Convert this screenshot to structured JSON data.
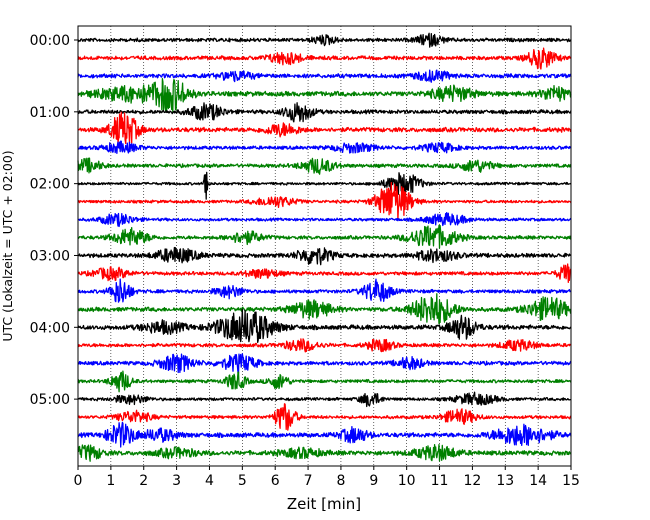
{
  "chart_data": {
    "type": "line",
    "title": "",
    "xlabel": "Zeit  [min]",
    "ylabel": "UTC (Lokalzeit = UTC + 02:00)",
    "xlim": [
      0,
      15
    ],
    "x_ticks": [
      0,
      1,
      2,
      3,
      4,
      5,
      6,
      7,
      8,
      9,
      10,
      11,
      12,
      13,
      14,
      15
    ],
    "x_tick_labels": [
      "0",
      "1",
      "2",
      "3",
      "4",
      "5",
      "6",
      "7",
      "8",
      "9",
      "10",
      "11",
      "12",
      "13",
      "14",
      "15"
    ],
    "y_tick_labels": [
      "00:00",
      "01:00",
      "02:00",
      "03:00",
      "04:00",
      "05:00"
    ],
    "y_tick_trace_index": [
      0,
      4,
      8,
      12,
      16,
      20
    ],
    "trace_minutes": 15,
    "grid": "vertical dotted",
    "color_cycle": [
      "#000000",
      "#ff0000",
      "#0000ff",
      "#008000"
    ],
    "series": [
      {
        "start": "00:00",
        "color": "#000000",
        "amp": 0.22,
        "bursts": [
          [
            7.5,
            0.35,
            0.6
          ],
          [
            10.7,
            0.4,
            0.8
          ]
        ]
      },
      {
        "start": "00:15",
        "color": "#ff0000",
        "amp": 0.24,
        "bursts": [
          [
            6.3,
            0.5,
            0.8
          ],
          [
            14.1,
            0.4,
            1.4
          ]
        ]
      },
      {
        "start": "00:30",
        "color": "#0000ff",
        "amp": 0.26,
        "bursts": [
          [
            4.8,
            0.5,
            0.6
          ],
          [
            10.8,
            0.5,
            0.7
          ]
        ]
      },
      {
        "start": "00:45",
        "color": "#008000",
        "amp": 0.3,
        "bursts": [
          [
            2.8,
            0.5,
            2.2
          ],
          [
            1.6,
            1.0,
            1.0
          ],
          [
            11.4,
            0.6,
            1.0
          ],
          [
            14.5,
            0.4,
            1.0
          ]
        ]
      },
      {
        "start": "01:00",
        "color": "#000000",
        "amp": 0.24,
        "bursts": [
          [
            3.9,
            0.5,
            1.1
          ],
          [
            6.7,
            0.4,
            1.4
          ]
        ]
      },
      {
        "start": "01:15",
        "color": "#ff0000",
        "amp": 0.28,
        "bursts": [
          [
            1.4,
            0.4,
            2.4
          ],
          [
            6.2,
            0.5,
            0.8
          ]
        ]
      },
      {
        "start": "01:30",
        "color": "#0000ff",
        "amp": 0.22,
        "bursts": [
          [
            1.3,
            0.5,
            0.7
          ],
          [
            8.4,
            0.6,
            0.6
          ],
          [
            11.0,
            0.5,
            0.6
          ]
        ]
      },
      {
        "start": "01:45",
        "color": "#008000",
        "amp": 0.22,
        "bursts": [
          [
            0.3,
            0.4,
            0.9
          ],
          [
            7.3,
            0.5,
            1.0
          ],
          [
            12.1,
            0.5,
            0.8
          ]
        ]
      },
      {
        "start": "02:00",
        "color": "#000000",
        "amp": 0.16,
        "bursts": [
          [
            9.9,
            0.5,
            1.6
          ],
          [
            3.9,
            0.05,
            4.0
          ]
        ]
      },
      {
        "start": "02:15",
        "color": "#ff0000",
        "amp": 0.18,
        "bursts": [
          [
            9.6,
            0.5,
            2.8
          ],
          [
            6.0,
            0.6,
            0.7
          ]
        ]
      },
      {
        "start": "02:30",
        "color": "#0000ff",
        "amp": 0.18,
        "bursts": [
          [
            1.2,
            0.5,
            0.8
          ],
          [
            11.2,
            0.6,
            0.8
          ]
        ]
      },
      {
        "start": "02:45",
        "color": "#008000",
        "amp": 0.22,
        "bursts": [
          [
            1.6,
            0.5,
            1.2
          ],
          [
            10.8,
            0.7,
            1.6
          ],
          [
            5.1,
            0.5,
            0.8
          ]
        ]
      },
      {
        "start": "03:00",
        "color": "#000000",
        "amp": 0.26,
        "bursts": [
          [
            3.0,
            0.6,
            1.0
          ],
          [
            7.2,
            0.5,
            1.2
          ],
          [
            10.9,
            0.6,
            0.8
          ]
        ]
      },
      {
        "start": "03:15",
        "color": "#ff0000",
        "amp": 0.22,
        "bursts": [
          [
            1.0,
            0.5,
            0.8
          ],
          [
            5.6,
            0.5,
            0.6
          ],
          [
            14.9,
            0.3,
            1.2
          ]
        ]
      },
      {
        "start": "03:30",
        "color": "#0000ff",
        "amp": 0.22,
        "bursts": [
          [
            1.3,
            0.3,
            1.8
          ],
          [
            4.6,
            0.4,
            0.8
          ],
          [
            9.1,
            0.4,
            1.6
          ]
        ]
      },
      {
        "start": "03:45",
        "color": "#008000",
        "amp": 0.26,
        "bursts": [
          [
            7.1,
            0.6,
            1.2
          ],
          [
            10.8,
            0.6,
            2.2
          ],
          [
            14.3,
            0.6,
            1.6
          ]
        ]
      },
      {
        "start": "04:00",
        "color": "#000000",
        "amp": 0.28,
        "bursts": [
          [
            5.1,
            0.8,
            2.4
          ],
          [
            11.7,
            0.4,
            1.6
          ],
          [
            2.6,
            0.6,
            0.8
          ]
        ]
      },
      {
        "start": "04:15",
        "color": "#ff0000",
        "amp": 0.22,
        "bursts": [
          [
            6.8,
            0.5,
            0.8
          ],
          [
            9.2,
            0.4,
            0.8
          ],
          [
            13.4,
            0.5,
            0.7
          ]
        ]
      },
      {
        "start": "04:30",
        "color": "#0000ff",
        "amp": 0.24,
        "bursts": [
          [
            3.0,
            0.5,
            1.2
          ],
          [
            4.9,
            0.5,
            1.2
          ],
          [
            10.1,
            0.4,
            0.8
          ]
        ]
      },
      {
        "start": "04:45",
        "color": "#008000",
        "amp": 0.2,
        "bursts": [
          [
            1.3,
            0.3,
            1.4
          ],
          [
            4.8,
            0.3,
            1.2
          ],
          [
            6.1,
            0.3,
            1.0
          ]
        ]
      },
      {
        "start": "05:00",
        "color": "#000000",
        "amp": 0.18,
        "bursts": [
          [
            8.9,
            0.3,
            1.0
          ],
          [
            12.1,
            0.6,
            0.8
          ],
          [
            1.6,
            0.5,
            0.6
          ]
        ]
      },
      {
        "start": "05:15",
        "color": "#ff0000",
        "amp": 0.2,
        "bursts": [
          [
            6.3,
            0.3,
            2.0
          ],
          [
            11.6,
            0.5,
            1.0
          ],
          [
            1.7,
            0.5,
            0.8
          ]
        ]
      },
      {
        "start": "05:30",
        "color": "#0000ff",
        "amp": 0.28,
        "bursts": [
          [
            1.3,
            0.4,
            1.6
          ],
          [
            8.4,
            0.4,
            1.0
          ],
          [
            13.5,
            0.8,
            1.4
          ],
          [
            2.5,
            0.5,
            0.8
          ]
        ]
      },
      {
        "start": "05:45",
        "color": "#008000",
        "amp": 0.28,
        "bursts": [
          [
            0.3,
            0.4,
            1.0
          ],
          [
            10.9,
            0.6,
            1.0
          ],
          [
            3.0,
            0.6,
            0.6
          ],
          [
            6.8,
            0.6,
            0.6
          ]
        ]
      }
    ]
  }
}
